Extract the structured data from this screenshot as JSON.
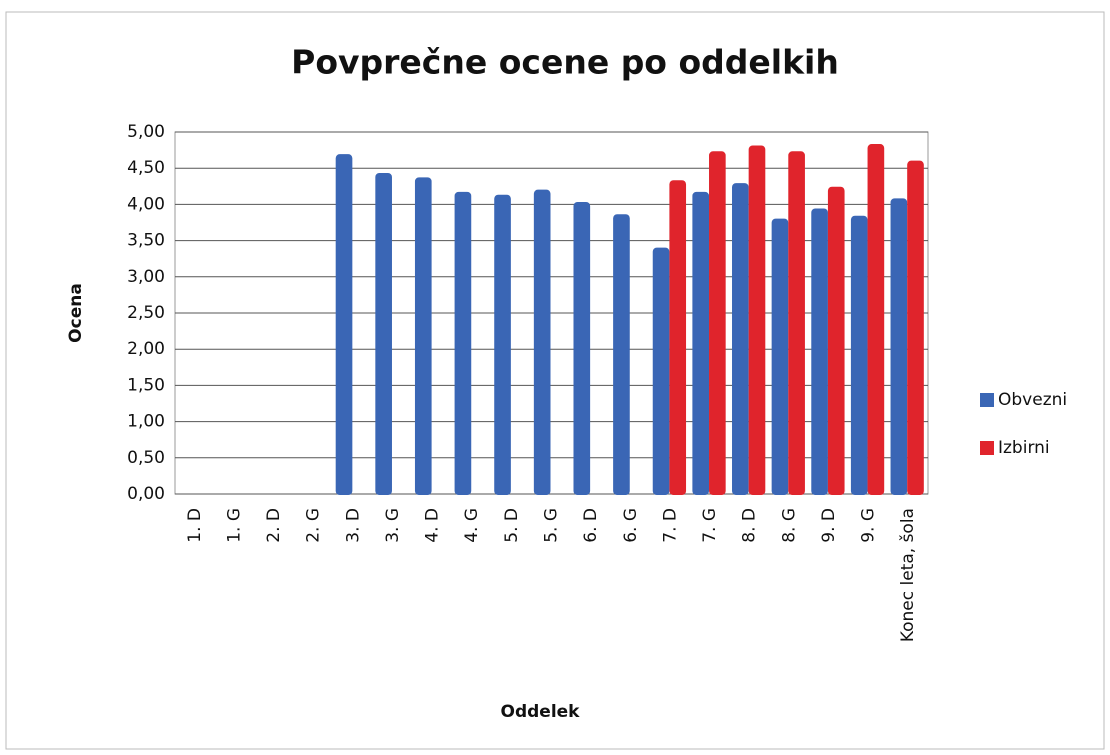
{
  "chart_data": {
    "type": "bar",
    "title": "Povprečne ocene po oddelkih",
    "x_label": "Oddelek",
    "y_label": "Ocena",
    "categories": [
      "1. D",
      "1. G",
      "2. D",
      "2. G",
      "3. D",
      "3. G",
      "4. D",
      "4. G",
      "5. D",
      "5. G",
      "6. D",
      "6. G",
      "7. D",
      "7. G",
      "8. D",
      "8. G",
      "9. D",
      "9. G",
      "Konec leta, šola"
    ],
    "series": [
      {
        "name": "Obvezni",
        "color": "#3a66b5",
        "values": [
          0,
          0,
          0,
          0,
          4.68,
          4.42,
          4.36,
          4.16,
          4.12,
          4.19,
          4.02,
          3.85,
          3.39,
          4.16,
          4.28,
          3.79,
          3.93,
          3.83,
          4.07
        ]
      },
      {
        "name": "Izbirni",
        "color": "#e0242c",
        "values": [
          null,
          null,
          null,
          null,
          null,
          null,
          null,
          null,
          null,
          null,
          null,
          null,
          4.32,
          4.72,
          4.8,
          4.72,
          4.23,
          4.82,
          4.59
        ]
      }
    ],
    "ylim": [
      0,
      5
    ],
    "yticks": [
      {
        "value": 0,
        "label": "0,00"
      },
      {
        "value": 0.5,
        "label": "0,50"
      },
      {
        "value": 1,
        "label": "1,00"
      },
      {
        "value": 1.5,
        "label": "1,50"
      },
      {
        "value": 2,
        "label": "2,00"
      },
      {
        "value": 2.5,
        "label": "2,50"
      },
      {
        "value": 3,
        "label": "3,00"
      },
      {
        "value": 3.5,
        "label": "3,50"
      },
      {
        "value": 4,
        "label": "4,00"
      },
      {
        "value": 4.5,
        "label": "4,50"
      },
      {
        "value": 5,
        "label": "5,00"
      }
    ],
    "grid": true,
    "legend": "right"
  }
}
